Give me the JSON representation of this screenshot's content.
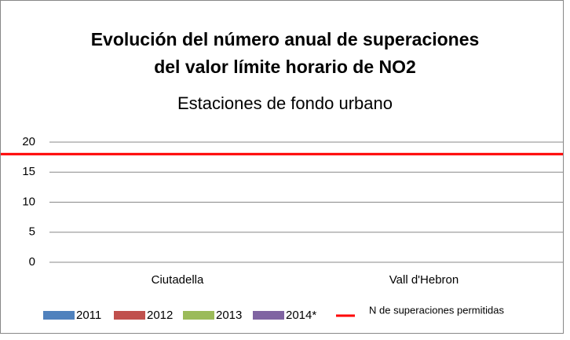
{
  "chart_data": {
    "type": "bar",
    "title": [
      "Evolución del número anual de superaciones",
      "del valor límite horario de NO2"
    ],
    "subtitle": "Estaciones de fondo urbano",
    "categories": [
      "Ciutadella",
      "Vall d'Hebron"
    ],
    "series": [
      {
        "name": "2011",
        "color": "#4f81bd",
        "values": [
          0,
          0
        ]
      },
      {
        "name": "2012",
        "color": "#c0504d",
        "values": [
          0,
          0
        ]
      },
      {
        "name": "2013",
        "color": "#9bbb59",
        "values": [
          0,
          0
        ]
      },
      {
        "name": "2014*",
        "color": "#8064a2",
        "values": [
          0,
          0
        ]
      },
      {
        "name": "N de superaciones permitidas",
        "color": "#ff0000",
        "type": "line",
        "values": [
          18,
          18
        ]
      }
    ],
    "ylim": [
      0,
      20
    ],
    "yticks": [
      0,
      5,
      10,
      15,
      20
    ],
    "grid": true,
    "legend": "bottom"
  }
}
